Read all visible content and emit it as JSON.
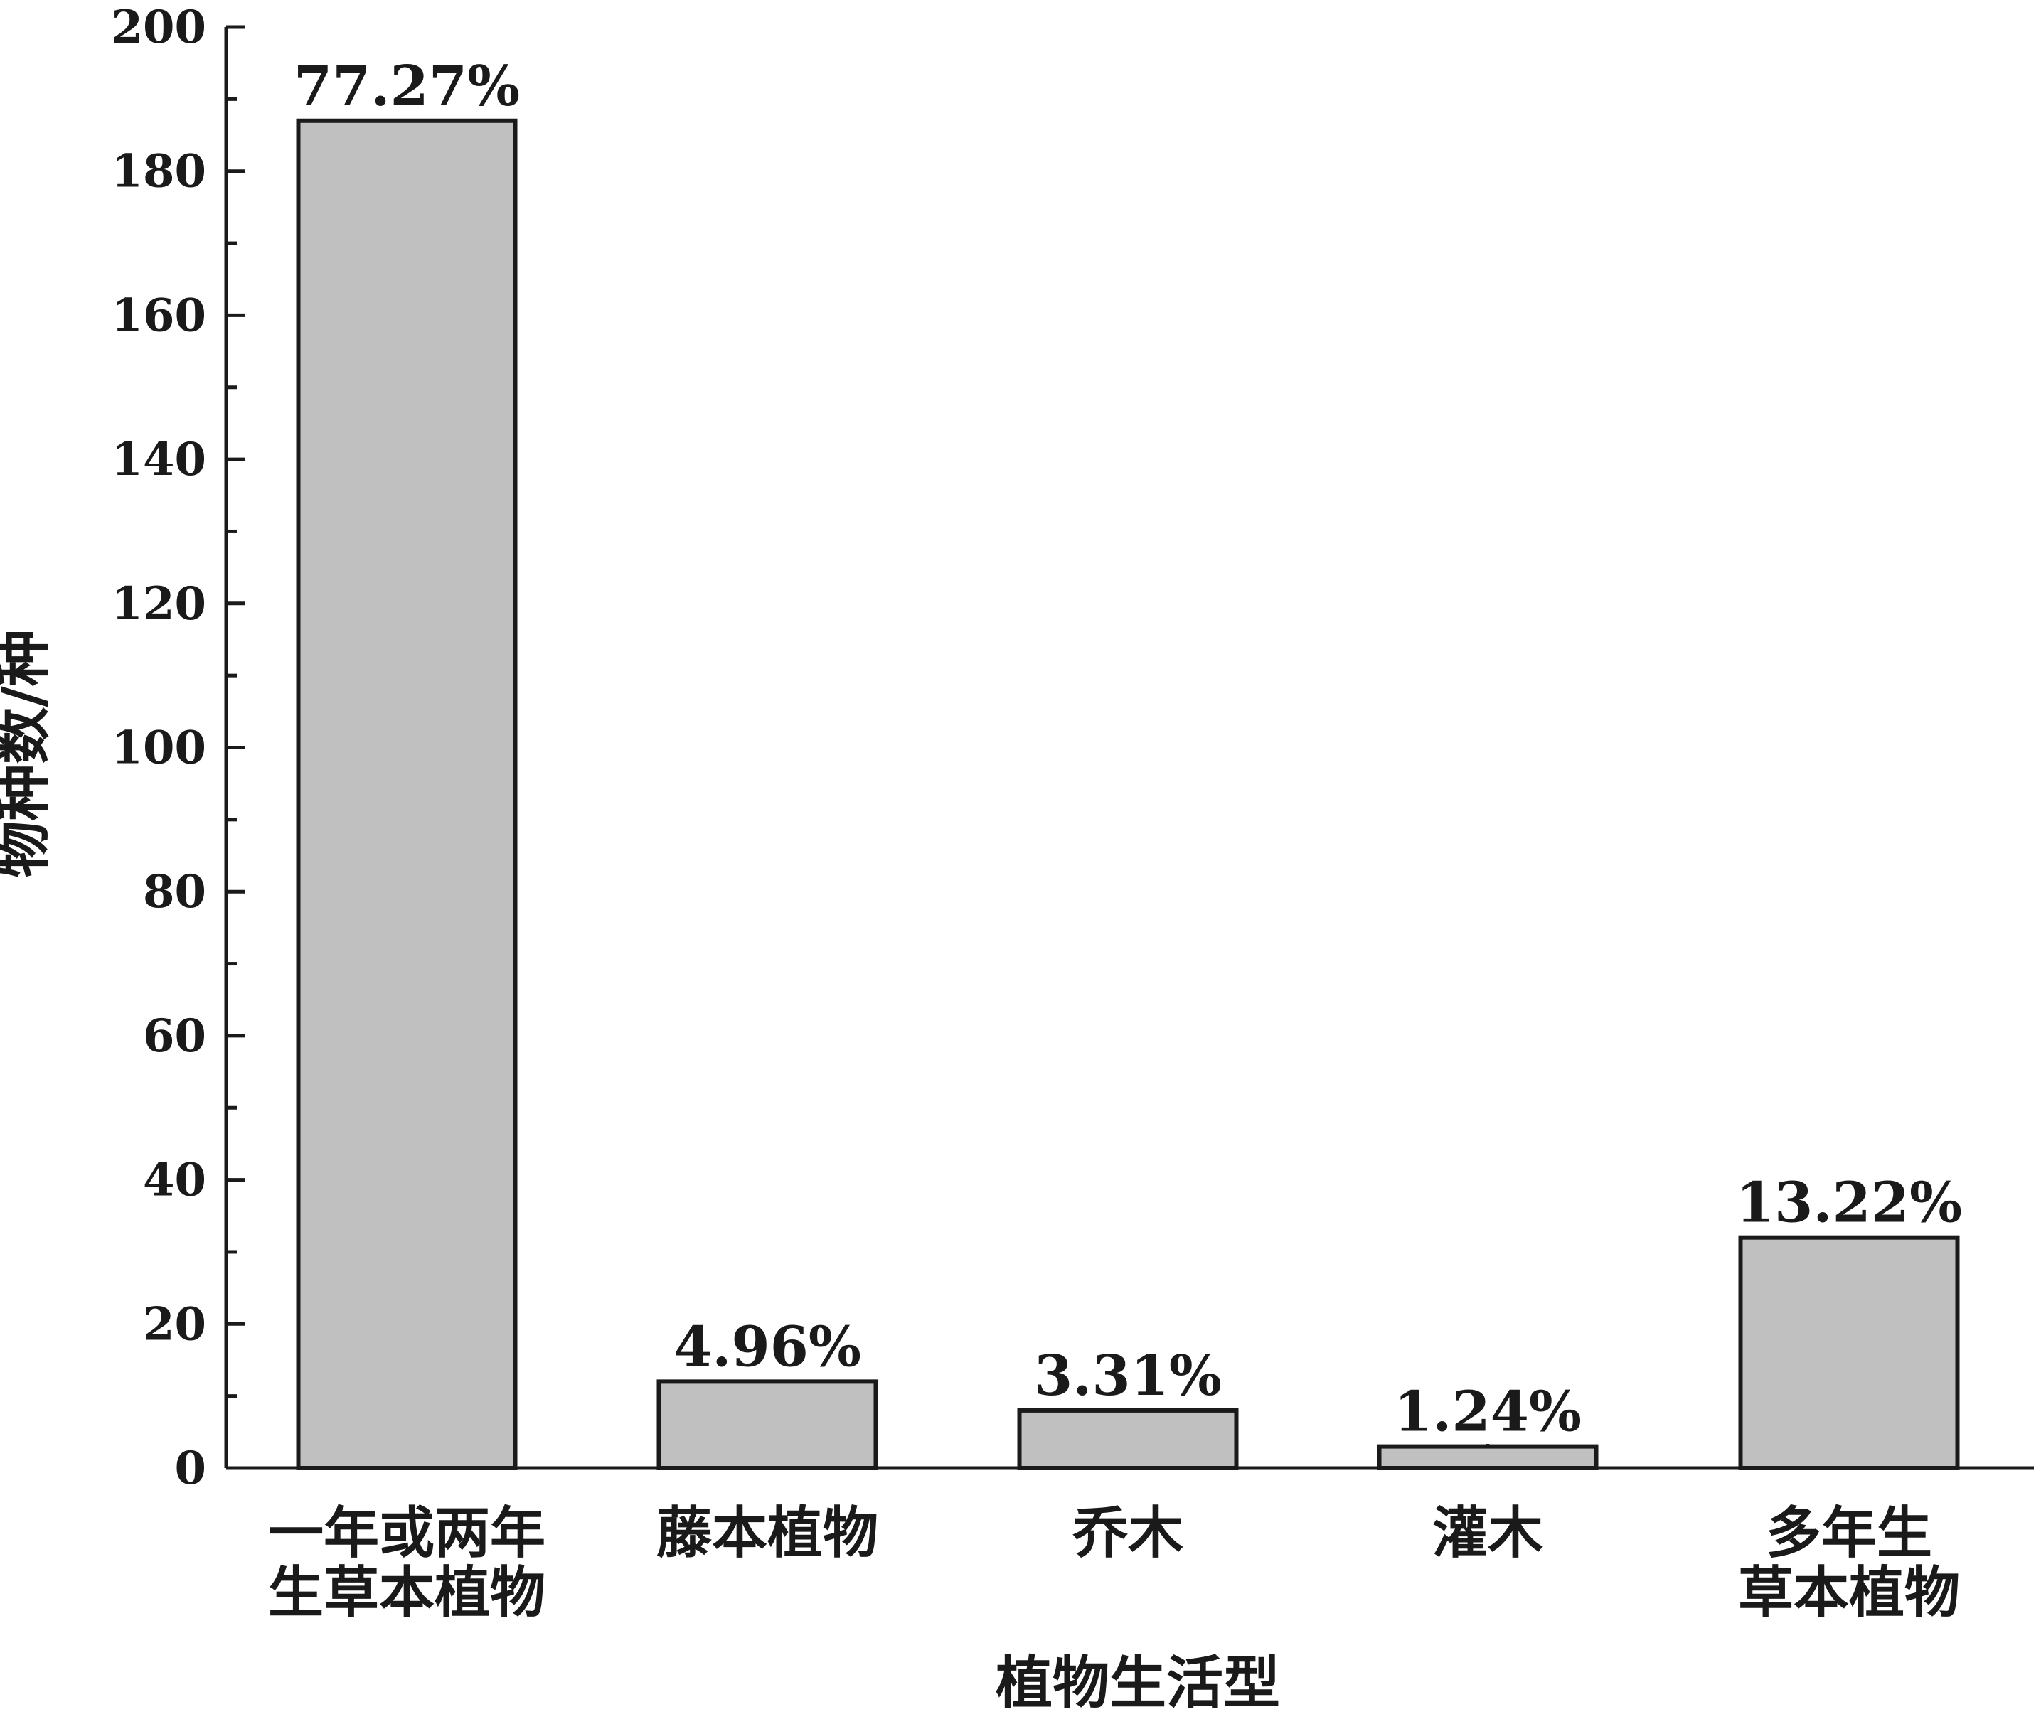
{
  "chart_data": {
    "type": "bar",
    "xlabel": "植物生活型",
    "ylabel": "物种数/种",
    "ylim": [
      0,
      200
    ],
    "y_ticks": [
      "0",
      "20",
      "40",
      "60",
      "80",
      "100",
      "120",
      "140",
      "160",
      "180",
      "200"
    ],
    "categories": [
      [
        "一年或两年",
        "生草本植物"
      ],
      [
        "藤本植物"
      ],
      [
        "乔木"
      ],
      [
        "灌木"
      ],
      [
        "多年生",
        "草本植物"
      ]
    ],
    "values": [
      187,
      12,
      8,
      3,
      32
    ],
    "data_labels": [
      "77.27%",
      "4.96%",
      "3.31%",
      "1.24%",
      "13.22%"
    ],
    "bar_color": "#c0c0c0",
    "bar_edge_color": "#1a1a1a",
    "grid": false,
    "legend": "none"
  }
}
